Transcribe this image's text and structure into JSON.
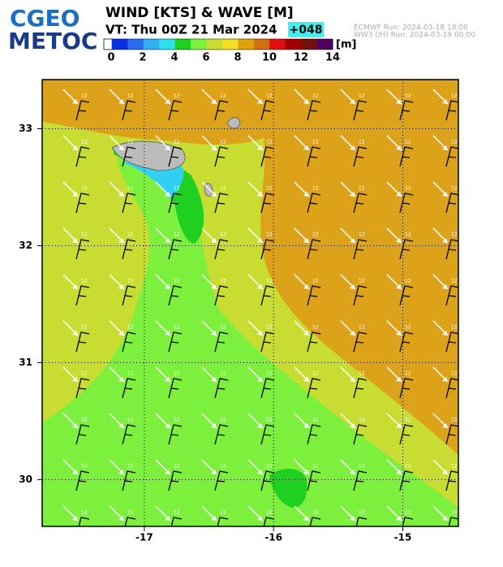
{
  "logo": {
    "line1": "CGEO",
    "line2": "METOC"
  },
  "header": {
    "title": "WIND [KTS] & WAVE [M]",
    "valid_time": "VT: Thu 00Z 21 Mar 2024",
    "lead": "+048",
    "run1": "ECMWF   Run: 2024-03-18 18:00",
    "run2": "WW3 (IH) Run: 2024-03-19 00:00"
  },
  "colorbar": {
    "unit": "[m]",
    "lim": [
      0,
      14
    ],
    "ticks": [
      0,
      2,
      4,
      6,
      8,
      10,
      12,
      14
    ],
    "colors": [
      "#0a2ee0",
      "#2a6cf0",
      "#30b0f0",
      "#30e0f0",
      "#20d020",
      "#7cf03c",
      "#c8dc32",
      "#f0e020",
      "#e0a010",
      "#d07010",
      "#e01010",
      "#a00000",
      "#701010",
      "#500060"
    ]
  },
  "map": {
    "xlim": [
      -17.79,
      -14.57
    ],
    "ylim": [
      29.6,
      33.42
    ],
    "xticks": [
      -17,
      -16,
      -15
    ],
    "yticks": [
      30,
      31,
      32,
      33
    ],
    "arrow_label": "12"
  }
}
